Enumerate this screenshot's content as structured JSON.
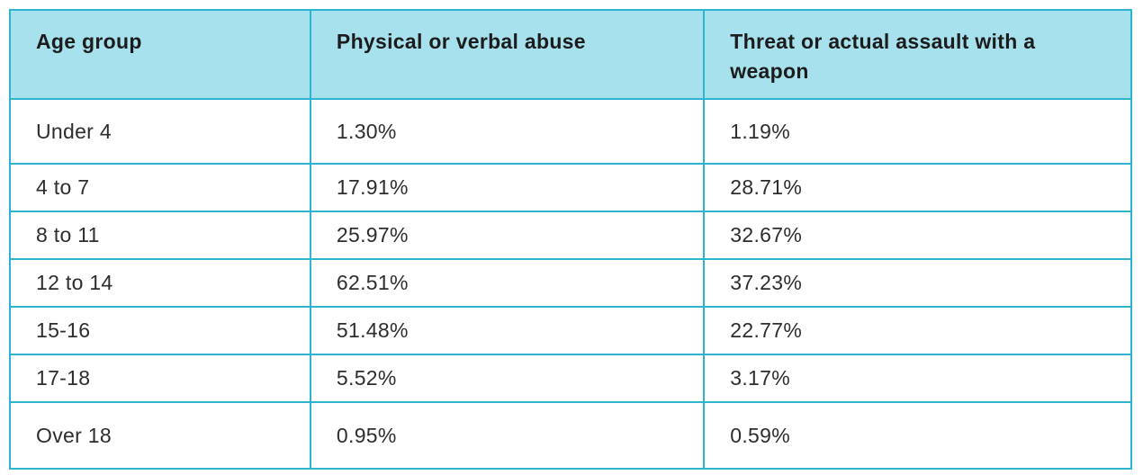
{
  "colors": {
    "header_bg": "#a7e1ed",
    "border": "#2db4d0",
    "text": "#222222",
    "page_bg": "#ffffff"
  },
  "table": {
    "columns": [
      "Age group",
      "Physical or verbal abuse",
      "Threat or actual assault with a weapon"
    ],
    "rows": [
      {
        "age_group": "Under 4",
        "physical_or_verbal_abuse": "1.30%",
        "threat_or_assault_with_weapon": "1.19%"
      },
      {
        "age_group": "4 to 7",
        "physical_or_verbal_abuse": "17.91%",
        "threat_or_assault_with_weapon": "28.71%"
      },
      {
        "age_group": "8 to 11",
        "physical_or_verbal_abuse": "25.97%",
        "threat_or_assault_with_weapon": "32.67%"
      },
      {
        "age_group": "12 to 14",
        "physical_or_verbal_abuse": "62.51%",
        "threat_or_assault_with_weapon": "37.23%"
      },
      {
        "age_group": "15-16",
        "physical_or_verbal_abuse": "51.48%",
        "threat_or_assault_with_weapon": "22.77%"
      },
      {
        "age_group": "17-18",
        "physical_or_verbal_abuse": "5.52%",
        "threat_or_assault_with_weapon": "3.17%"
      },
      {
        "age_group": "Over 18",
        "physical_or_verbal_abuse": "0.95%",
        "threat_or_assault_with_weapon": "0.59%"
      }
    ]
  },
  "chart_data": {
    "type": "table",
    "title": "",
    "columns": [
      "Age group",
      "Physical or verbal abuse",
      "Threat or actual assault with a weapon"
    ],
    "categories": [
      "Under 4",
      "4 to 7",
      "8 to 11",
      "12 to 14",
      "15-16",
      "17-18",
      "Over 18"
    ],
    "series": [
      {
        "name": "Physical or verbal abuse",
        "values": [
          1.3,
          17.91,
          25.97,
          62.51,
          51.48,
          5.52,
          0.95
        ],
        "unit": "%"
      },
      {
        "name": "Threat or actual assault with a weapon",
        "values": [
          1.19,
          28.71,
          32.67,
          37.23,
          22.77,
          3.17,
          0.59
        ],
        "unit": "%"
      }
    ]
  }
}
